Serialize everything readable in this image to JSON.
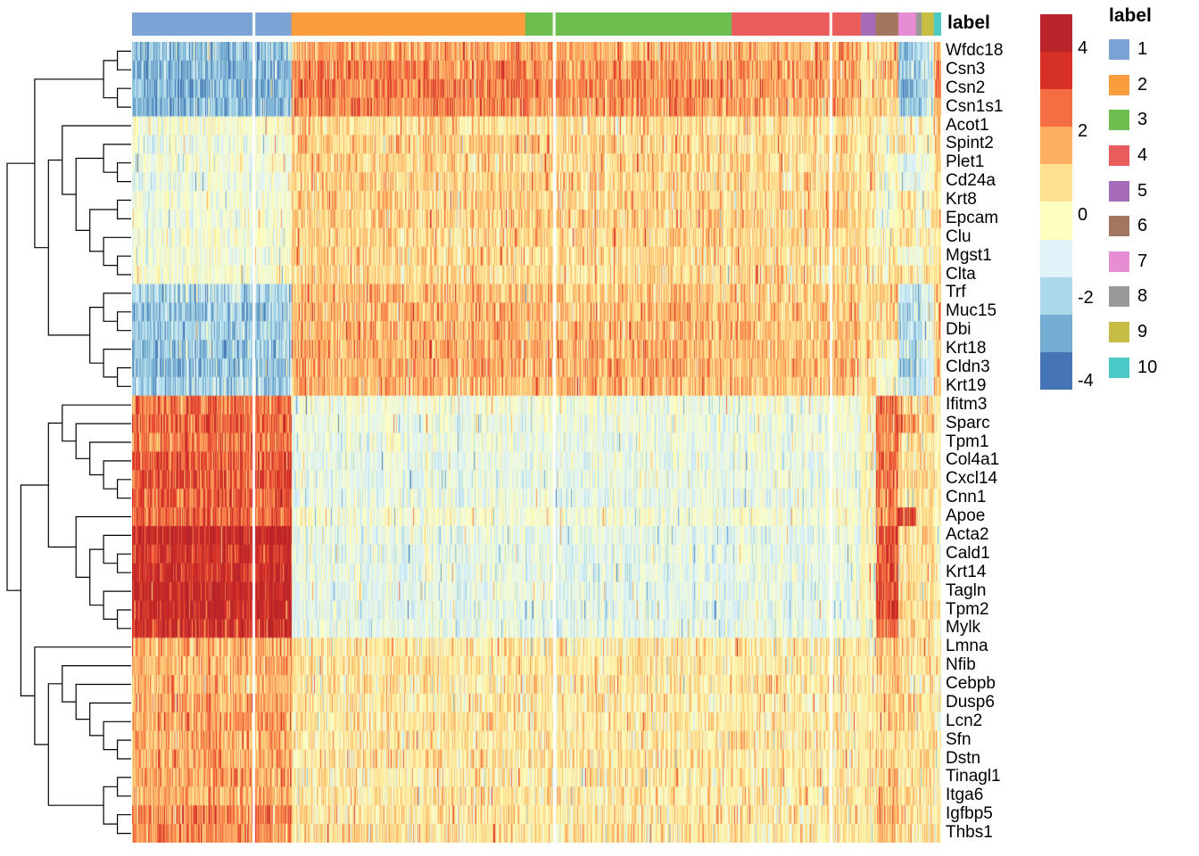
{
  "annotation": {
    "title": "label"
  },
  "legend": {
    "title": "label"
  },
  "colorbar": {
    "ticks": [
      "4",
      "2",
      "0",
      "-2",
      "-4"
    ],
    "colors": [
      "#b8242a",
      "#d73027",
      "#f46d43",
      "#fdae61",
      "#fee090",
      "#ffffbf",
      "#e0f3f8",
      "#abd9e9",
      "#74add1",
      "#4575b4"
    ]
  },
  "chart_data": {
    "type": "heatmap",
    "value_domain": [
      -4.8,
      4.8
    ],
    "genes": [
      "Wfdc18",
      "Csn3",
      "Csn2",
      "Csn1s1",
      "Acot1",
      "Spint2",
      "Plet1",
      "Cd24a",
      "Krt8",
      "Epcam",
      "Clu",
      "Mgst1",
      "Clta",
      "Trf",
      "Muc15",
      "Dbi",
      "Krt18",
      "Cldn3",
      "Krt19",
      "Ifitm3",
      "Sparc",
      "Tpm1",
      "Col4a1",
      "Cxcl14",
      "Cnn1",
      "Apoe",
      "Acta2",
      "Cald1",
      "Krt14",
      "Tagln",
      "Tpm2",
      "Mylk",
      "Lmna",
      "Nfib",
      "Cebpb",
      "Dusp6",
      "Lcn2",
      "Sfn",
      "Dstn",
      "Tinagl1",
      "Itga6",
      "Igfbp5",
      "Thbs1"
    ],
    "clusters": [
      {
        "label": "1",
        "color": "#7BA3D3",
        "fraction": 0.197
      },
      {
        "label": "2",
        "color": "#FA9D3C",
        "fraction": 0.289
      },
      {
        "label": "3",
        "color": "#6CBE4F",
        "fraction": 0.255
      },
      {
        "label": "4",
        "color": "#E95C5C",
        "fraction": 0.16
      },
      {
        "label": "5",
        "color": "#A46BB8",
        "fraction": 0.018
      },
      {
        "label": "6",
        "color": "#A3765F",
        "fraction": 0.028
      },
      {
        "label": "7",
        "color": "#E78DD3",
        "fraction": 0.022
      },
      {
        "label": "8",
        "color": "#999999",
        "fraction": 0.007
      },
      {
        "label": "9",
        "color": "#C6BD45",
        "fraction": 0.015
      },
      {
        "label": "10",
        "color": "#4BC8C8",
        "fraction": 0.009
      }
    ],
    "cluster_means_by_gene": [
      [
        -3.2,
        1.6,
        1.4,
        1.4,
        0.6,
        1.0,
        -2.8,
        -2.5,
        -2.0,
        1.2
      ],
      [
        -3.5,
        2.2,
        1.8,
        1.6,
        0.8,
        1.2,
        -3.0,
        -2.8,
        -2.2,
        1.8
      ],
      [
        -3.5,
        2.4,
        2.0,
        1.6,
        0.8,
        1.0,
        -3.2,
        -3.0,
        -2.5,
        2.0
      ],
      [
        -3.4,
        2.2,
        1.9,
        1.5,
        0.7,
        0.8,
        -3.0,
        -2.8,
        -2.4,
        1.6
      ],
      [
        -0.8,
        0.5,
        0.4,
        0.4,
        0.2,
        0.2,
        -0.3,
        -0.5,
        -0.4,
        0.3
      ],
      [
        -1.2,
        0.8,
        0.7,
        0.6,
        0.3,
        -0.3,
        0.4,
        -0.8,
        -0.5,
        0.6
      ],
      [
        -1.0,
        0.7,
        0.6,
        0.5,
        0.3,
        -0.5,
        -1.5,
        -1.2,
        -1.0,
        0.4
      ],
      [
        -1.2,
        0.8,
        0.7,
        0.6,
        0.3,
        -0.6,
        -1.2,
        -1.5,
        -0.8,
        0.5
      ],
      [
        -1.0,
        0.8,
        0.7,
        0.6,
        0.3,
        -0.8,
        0.3,
        -0.6,
        -0.5,
        0.5
      ],
      [
        -1.1,
        0.8,
        0.7,
        0.7,
        0.3,
        -1.0,
        0.4,
        -0.8,
        -0.6,
        0.6
      ],
      [
        -0.9,
        0.6,
        0.6,
        0.5,
        0.2,
        -0.5,
        0.5,
        -0.5,
        -0.4,
        0.4
      ],
      [
        -1.0,
        0.7,
        0.6,
        0.5,
        0.3,
        -0.4,
        -0.8,
        -1.0,
        -0.6,
        0.4
      ],
      [
        -0.8,
        0.6,
        0.5,
        0.5,
        0.2,
        -0.3,
        0.2,
        -0.4,
        -0.3,
        0.3
      ],
      [
        -2.6,
        1.2,
        1.1,
        1.0,
        0.5,
        0.8,
        -2.0,
        -2.0,
        -1.6,
        0.6
      ],
      [
        -3.0,
        1.4,
        1.2,
        1.0,
        0.5,
        0.6,
        -2.4,
        -2.2,
        -1.8,
        0.5
      ],
      [
        -2.8,
        1.3,
        1.2,
        1.1,
        0.5,
        0.7,
        -2.2,
        -2.0,
        -1.6,
        0.6
      ],
      [
        -3.0,
        1.5,
        1.3,
        1.2,
        0.5,
        -0.5,
        -2.5,
        -2.4,
        -2.0,
        0.8
      ],
      [
        -3.2,
        1.5,
        1.4,
        1.2,
        0.5,
        -0.8,
        -2.6,
        -2.4,
        -2.0,
        0.8
      ],
      [
        -2.8,
        1.4,
        1.3,
        1.1,
        0.5,
        -0.6,
        -2.2,
        -2.0,
        -1.8,
        0.7
      ],
      [
        2.4,
        -1.0,
        -1.1,
        -1.0,
        -0.5,
        2.2,
        0.6,
        0.5,
        0.4,
        -0.5
      ],
      [
        2.8,
        -1.2,
        -1.2,
        -1.1,
        -0.5,
        2.6,
        2.4,
        0.5,
        0.5,
        -0.5
      ],
      [
        2.4,
        -1.1,
        -1.2,
        -1.0,
        -0.5,
        2.2,
        0.4,
        0.3,
        0.4,
        -0.6
      ],
      [
        3.0,
        -1.3,
        -1.3,
        -1.2,
        -0.6,
        2.6,
        0.5,
        0.4,
        0.3,
        -0.6
      ],
      [
        3.0,
        -1.3,
        -1.3,
        -1.2,
        -0.6,
        2.4,
        0.4,
        0.3,
        0.3,
        -0.6
      ],
      [
        2.8,
        -1.2,
        -1.3,
        -1.2,
        -0.6,
        2.4,
        0.3,
        0.2,
        0.3,
        -0.5
      ],
      [
        2.6,
        -0.8,
        -0.9,
        -0.9,
        -0.4,
        2.2,
        3.5,
        0.4,
        0.4,
        -0.4
      ],
      [
        4.4,
        -1.3,
        -1.4,
        -1.3,
        -0.6,
        3.4,
        0.6,
        0.4,
        0.5,
        -0.5
      ],
      [
        3.8,
        -1.3,
        -1.4,
        -1.3,
        -0.6,
        3.0,
        0.5,
        0.4,
        0.4,
        -0.5
      ],
      [
        4.0,
        -1.3,
        -1.4,
        -1.3,
        -0.6,
        3.2,
        0.4,
        0.3,
        0.4,
        -0.6
      ],
      [
        4.4,
        -1.4,
        -1.4,
        -1.3,
        -0.6,
        3.4,
        0.5,
        0.3,
        0.4,
        -0.6
      ],
      [
        4.3,
        -1.4,
        -1.4,
        -1.3,
        -0.6,
        3.3,
        0.5,
        0.4,
        0.4,
        -0.6
      ],
      [
        3.9,
        -1.3,
        -1.4,
        -1.3,
        -0.6,
        3.0,
        0.4,
        0.3,
        0.3,
        -0.5
      ],
      [
        1.4,
        0.1,
        0.0,
        0.1,
        0.1,
        1.0,
        0.5,
        0.2,
        0.3,
        -0.2
      ],
      [
        1.3,
        0.2,
        0.1,
        0.0,
        0.1,
        0.8,
        0.4,
        0.1,
        0.2,
        -0.3
      ],
      [
        1.2,
        0.1,
        0.0,
        0.1,
        0.1,
        0.8,
        0.3,
        0.0,
        0.2,
        -0.4
      ],
      [
        1.5,
        0.2,
        0.0,
        0.0,
        0.1,
        0.9,
        0.4,
        0.2,
        0.2,
        -0.3
      ],
      [
        1.6,
        0.3,
        0.1,
        0.1,
        0.1,
        0.6,
        0.5,
        0.3,
        0.3,
        -0.5
      ],
      [
        1.5,
        0.2,
        0.1,
        0.2,
        0.2,
        0.5,
        0.4,
        0.2,
        0.2,
        -0.4
      ],
      [
        1.4,
        0.2,
        0.1,
        0.1,
        0.1,
        0.6,
        0.4,
        0.2,
        0.3,
        -0.4
      ],
      [
        1.7,
        0.1,
        0.0,
        0.1,
        0.1,
        1.0,
        0.5,
        0.2,
        0.3,
        -0.3
      ],
      [
        1.5,
        0.2,
        0.1,
        0.1,
        0.1,
        1.0,
        0.4,
        0.2,
        0.2,
        -0.3
      ],
      [
        2.2,
        0.2,
        0.1,
        0.1,
        0.2,
        1.2,
        0.6,
        0.3,
        0.3,
        -0.3
      ],
      [
        2.0,
        0.3,
        0.1,
        0.1,
        0.2,
        1.0,
        0.5,
        0.3,
        0.3,
        -0.4
      ]
    ],
    "column_gaps": [
      0.149,
      0.52,
      0.862
    ],
    "pale_columns": [
      {
        "start": 0.9005,
        "end": 0.9065
      }
    ],
    "row_tree": [
      [
        [
          [
            "Wfdc18",
            "Csn3"
          ],
          [
            "Csn2",
            "Csn1s1"
          ]
        ],
        [
          [
            "Acot1",
            [
              [
                "Spint2",
                [
                  "Plet1",
                  "Cd24a"
                ]
              ],
              [
                [
                  "Krt8",
                  "Epcam"
                ],
                [
                  "Clu",
                  [
                    "Mgst1",
                    "Clta"
                  ]
                ]
              ]
            ]
          ],
          [
            [
              "Trf",
              [
                "Muc15",
                "Dbi"
              ]
            ],
            [
              "Krt18",
              [
                "Cldn3",
                "Krt19"
              ]
            ]
          ]
        ]
      ],
      [
        [
          [
            "Ifitm3",
            [
              "Sparc",
              [
                "Tpm1",
                [
                  "Col4a1",
                  [
                    "Cxcl14",
                    "Cnn1"
                  ]
                ]
              ]
            ]
          ],
          [
            "Apoe",
            [
              [
                "Acta2",
                [
                  "Cald1",
                  "Krt14"
                ]
              ],
              [
                "Tagln",
                [
                  "Tpm2",
                  "Mylk"
                ]
              ]
            ]
          ]
        ],
        [
          "Lmna",
          [
            [
              "Nfib",
              [
                "Cebpb",
                [
                  "Dusp6",
                  [
                    "Lcn2",
                    [
                      "Sfn",
                      "Dstn"
                    ]
                  ]
                ]
              ]
            ],
            [
              [
                "Tinagl1",
                "Itga6"
              ],
              [
                "Igfbp5",
                "Thbs1"
              ]
            ]
          ]
        ]
      ]
    ]
  }
}
